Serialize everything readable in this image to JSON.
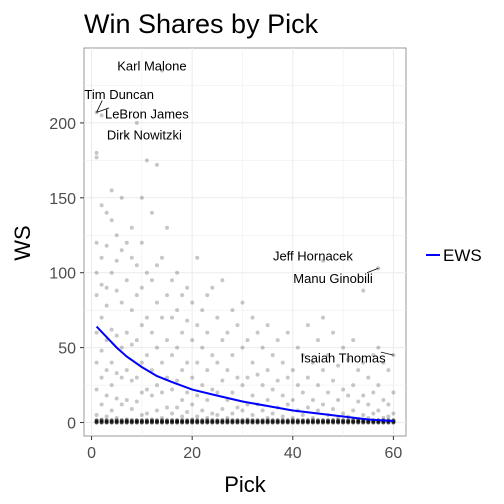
{
  "chart_data": {
    "type": "scatter",
    "title": "Win Shares by Pick",
    "xlabel": "Pick",
    "ylabel": "WS",
    "xlim": [
      -1.5,
      62.5
    ],
    "ylim": [
      -9,
      250
    ],
    "x_ticks": [
      0,
      20,
      40,
      60
    ],
    "x_tick_labels": [
      "0",
      "20",
      "40",
      "60"
    ],
    "y_ticks": [
      0,
      50,
      100,
      150,
      200
    ],
    "y_tick_labels": [
      "0",
      "50",
      "100",
      "150",
      "200"
    ],
    "grid": true,
    "colors": {
      "points": "#000000",
      "fit_line": "#0000ff",
      "panel_border": "#7f7f7f",
      "grid": "#ebebeb"
    },
    "series": [
      {
        "name": "players",
        "kind": "points",
        "points": [
          [
            1,
            207
          ],
          [
            1,
            180
          ],
          [
            1,
            177
          ],
          [
            1,
            120
          ],
          [
            1,
            100
          ],
          [
            1,
            85
          ],
          [
            1,
            60
          ],
          [
            1,
            40
          ],
          [
            1,
            22
          ],
          [
            1,
            5
          ],
          [
            2,
            205
          ],
          [
            2,
            145
          ],
          [
            2,
            110
          ],
          [
            2,
            92
          ],
          [
            2,
            70
          ],
          [
            2,
            48
          ],
          [
            2,
            30
          ],
          [
            2,
            12
          ],
          [
            2,
            2
          ],
          [
            3,
            140
          ],
          [
            3,
            118
          ],
          [
            3,
            90
          ],
          [
            3,
            78
          ],
          [
            3,
            55
          ],
          [
            3,
            35
          ],
          [
            3,
            18
          ],
          [
            3,
            4
          ],
          [
            4,
            155
          ],
          [
            4,
            135
          ],
          [
            4,
            100
          ],
          [
            4,
            62
          ],
          [
            4,
            40
          ],
          [
            4,
            25
          ],
          [
            4,
            8
          ],
          [
            5,
            125
          ],
          [
            5,
            108
          ],
          [
            5,
            88
          ],
          [
            5,
            58
          ],
          [
            5,
            33
          ],
          [
            5,
            16
          ],
          [
            5,
            3
          ],
          [
            6,
            150
          ],
          [
            6,
            115
          ],
          [
            6,
            80
          ],
          [
            6,
            50
          ],
          [
            6,
            30
          ],
          [
            6,
            12
          ],
          [
            7,
            192
          ],
          [
            7,
            120
          ],
          [
            7,
            95
          ],
          [
            7,
            60
          ],
          [
            7,
            35
          ],
          [
            7,
            15
          ],
          [
            7,
            2
          ],
          [
            8,
            130
          ],
          [
            8,
            110
          ],
          [
            8,
            75
          ],
          [
            8,
            52
          ],
          [
            8,
            28
          ],
          [
            8,
            9
          ],
          [
            9,
            200
          ],
          [
            9,
            105
          ],
          [
            9,
            85
          ],
          [
            9,
            55
          ],
          [
            9,
            30
          ],
          [
            9,
            14
          ],
          [
            9,
            1
          ],
          [
            10,
            150
          ],
          [
            10,
            120
          ],
          [
            10,
            90
          ],
          [
            10,
            65
          ],
          [
            10,
            40
          ],
          [
            10,
            20
          ],
          [
            10,
            5
          ],
          [
            11,
            175
          ],
          [
            11,
            100
          ],
          [
            11,
            70
          ],
          [
            11,
            45
          ],
          [
            11,
            22
          ],
          [
            11,
            6
          ],
          [
            12,
            140
          ],
          [
            12,
            95
          ],
          [
            12,
            60
          ],
          [
            12,
            35
          ],
          [
            12,
            18
          ],
          [
            12,
            2
          ],
          [
            13,
            172
          ],
          [
            13,
            105
          ],
          [
            13,
            80
          ],
          [
            13,
            50
          ],
          [
            13,
            25
          ],
          [
            13,
            8
          ],
          [
            14,
            235
          ],
          [
            14,
            110
          ],
          [
            14,
            70
          ],
          [
            14,
            40
          ],
          [
            14,
            20
          ],
          [
            14,
            3
          ],
          [
            15,
            130
          ],
          [
            15,
            85
          ],
          [
            15,
            55
          ],
          [
            15,
            30
          ],
          [
            15,
            10
          ],
          [
            16,
            95
          ],
          [
            16,
            70
          ],
          [
            16,
            45
          ],
          [
            16,
            22
          ],
          [
            16,
            6
          ],
          [
            17,
            100
          ],
          [
            17,
            75
          ],
          [
            17,
            50
          ],
          [
            17,
            28
          ],
          [
            17,
            10
          ],
          [
            17,
            1
          ],
          [
            18,
            85
          ],
          [
            18,
            60
          ],
          [
            18,
            35
          ],
          [
            18,
            15
          ],
          [
            18,
            4
          ],
          [
            19,
            90
          ],
          [
            19,
            68
          ],
          [
            19,
            40
          ],
          [
            19,
            20
          ],
          [
            19,
            7
          ],
          [
            20,
            80
          ],
          [
            20,
            55
          ],
          [
            20,
            30
          ],
          [
            20,
            12
          ],
          [
            20,
            2
          ],
          [
            21,
            110
          ],
          [
            21,
            65
          ],
          [
            21,
            40
          ],
          [
            21,
            18
          ],
          [
            21,
            4
          ],
          [
            22,
            75
          ],
          [
            22,
            50
          ],
          [
            22,
            25
          ],
          [
            22,
            8
          ],
          [
            23,
            85
          ],
          [
            23,
            60
          ],
          [
            23,
            35
          ],
          [
            23,
            15
          ],
          [
            23,
            3
          ],
          [
            24,
            90
          ],
          [
            24,
            45
          ],
          [
            24,
            22
          ],
          [
            24,
            6
          ],
          [
            25,
            70
          ],
          [
            25,
            40
          ],
          [
            25,
            20
          ],
          [
            25,
            5
          ],
          [
            26,
            95
          ],
          [
            26,
            55
          ],
          [
            26,
            28
          ],
          [
            26,
            9
          ],
          [
            27,
            60
          ],
          [
            27,
            35
          ],
          [
            27,
            15
          ],
          [
            27,
            3
          ],
          [
            28,
            75
          ],
          [
            28,
            45
          ],
          [
            28,
            20
          ],
          [
            28,
            6
          ],
          [
            29,
            65
          ],
          [
            29,
            30
          ],
          [
            29,
            10
          ],
          [
            30,
            80
          ],
          [
            30,
            50
          ],
          [
            30,
            25
          ],
          [
            30,
            8
          ],
          [
            31,
            55
          ],
          [
            31,
            30
          ],
          [
            31,
            12
          ],
          [
            31,
            2
          ],
          [
            32,
            70
          ],
          [
            32,
            40
          ],
          [
            32,
            18
          ],
          [
            32,
            5
          ],
          [
            33,
            60
          ],
          [
            33,
            32
          ],
          [
            33,
            12
          ],
          [
            34,
            50
          ],
          [
            34,
            25
          ],
          [
            34,
            8
          ],
          [
            35,
            65
          ],
          [
            35,
            35
          ],
          [
            35,
            15
          ],
          [
            35,
            3
          ],
          [
            36,
            45
          ],
          [
            36,
            22
          ],
          [
            36,
            6
          ],
          [
            37,
            55
          ],
          [
            37,
            28
          ],
          [
            37,
            10
          ],
          [
            38,
            40
          ],
          [
            38,
            18
          ],
          [
            38,
            4
          ],
          [
            39,
            60
          ],
          [
            39,
            30
          ],
          [
            39,
            12
          ],
          [
            40,
            35
          ],
          [
            40,
            15
          ],
          [
            40,
            3
          ],
          [
            41,
            50
          ],
          [
            41,
            25
          ],
          [
            41,
            8
          ],
          [
            42,
            45
          ],
          [
            42,
            20
          ],
          [
            42,
            5
          ],
          [
            43,
            65
          ],
          [
            43,
            30
          ],
          [
            43,
            10
          ],
          [
            44,
            40
          ],
          [
            44,
            15
          ],
          [
            44,
            3
          ],
          [
            45,
            55
          ],
          [
            45,
            25
          ],
          [
            45,
            8
          ],
          [
            46,
            108
          ],
          [
            46,
            70
          ],
          [
            46,
            35
          ],
          [
            46,
            12
          ],
          [
            47,
            45
          ],
          [
            47,
            20
          ],
          [
            47,
            5
          ],
          [
            48,
            60
          ],
          [
            48,
            28
          ],
          [
            48,
            9
          ],
          [
            49,
            38
          ],
          [
            49,
            15
          ],
          [
            49,
            3
          ],
          [
            50,
            50
          ],
          [
            50,
            22
          ],
          [
            50,
            6
          ],
          [
            51,
            42
          ],
          [
            51,
            18
          ],
          [
            51,
            4
          ],
          [
            52,
            55
          ],
          [
            52,
            25
          ],
          [
            52,
            8
          ],
          [
            53,
            35
          ],
          [
            53,
            14
          ],
          [
            53,
            2
          ],
          [
            54,
            88
          ],
          [
            54,
            40
          ],
          [
            54,
            18
          ],
          [
            54,
            5
          ],
          [
            55,
            30
          ],
          [
            55,
            12
          ],
          [
            55,
            3
          ],
          [
            56,
            45
          ],
          [
            56,
            20
          ],
          [
            56,
            6
          ],
          [
            57,
            103
          ],
          [
            57,
            50
          ],
          [
            57,
            25
          ],
          [
            57,
            8
          ],
          [
            58,
            40
          ],
          [
            58,
            15
          ],
          [
            58,
            3
          ],
          [
            59,
            35
          ],
          [
            59,
            12
          ],
          [
            59,
            4
          ],
          [
            60,
            45
          ],
          [
            60,
            20
          ],
          [
            60,
            6
          ]
        ]
      },
      {
        "name": "EWS",
        "kind": "line",
        "x": [
          1,
          3,
          5,
          7,
          10,
          13,
          16,
          20,
          25,
          30,
          35,
          40,
          45,
          50,
          55,
          60
        ],
        "values": [
          64,
          57,
          50,
          44,
          37,
          31,
          27,
          22,
          18,
          14,
          11,
          8,
          6,
          4,
          2,
          1
        ]
      }
    ],
    "annotations": [
      {
        "label": "Karl Malone",
        "x": 14,
        "y": 235,
        "label_x": 12,
        "label_y": 238
      },
      {
        "label": "Tim Duncan",
        "x": 1,
        "y": 207,
        "label_x": 5.5,
        "label_y": 219
      },
      {
        "label": "LeBron James",
        "x": 1,
        "y": 207,
        "label_x": 11,
        "label_y": 206
      },
      {
        "label": "Dirk Nowitzki",
        "x": 9,
        "y": 200,
        "label_x": 10.5,
        "label_y": 192
      },
      {
        "label": "Jeff Hornacek",
        "x": 46,
        "y": 108,
        "label_x": 44,
        "label_y": 111
      },
      {
        "label": "Manu Ginobili",
        "x": 57,
        "y": 103,
        "label_x": 48,
        "label_y": 96
      },
      {
        "label": "Isaiah Thomas",
        "x": 60,
        "y": 45,
        "label_x": 50,
        "label_y": 43
      }
    ],
    "legend": {
      "position": "right",
      "entries": [
        {
          "label": "EWS",
          "color": "#0000ff"
        }
      ]
    }
  }
}
